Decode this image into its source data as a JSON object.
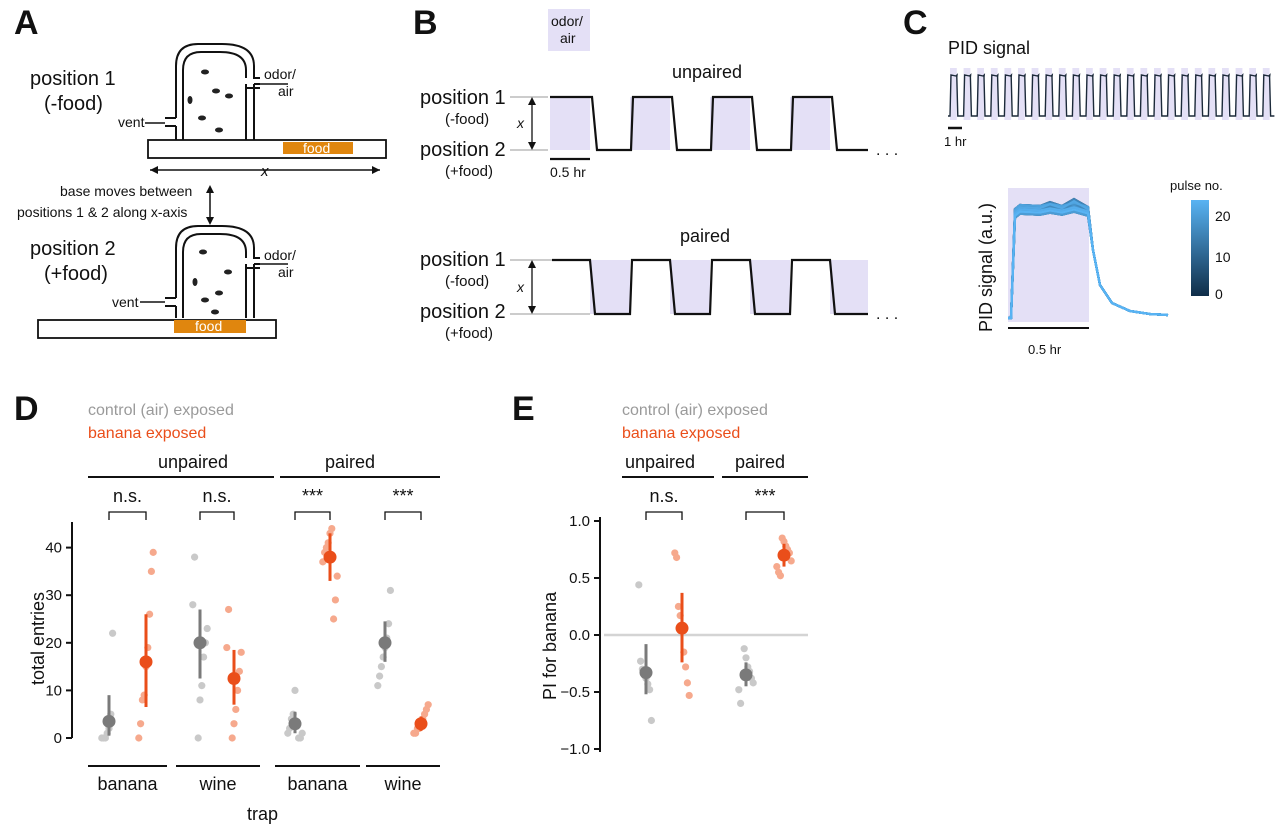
{
  "colors": {
    "control": "#7a7a7a",
    "control_light": "#c9c9c9",
    "banana": "#ea4e1a",
    "banana_light": "#f6a98d",
    "odor_shade": "#e4e0f6",
    "food": "#e0860e",
    "pid_trace": "#1c2a3a",
    "pulse_low": "#0f2d48",
    "pulse_high": "#58b3f3"
  },
  "panel_labels": [
    "A",
    "B",
    "C",
    "D",
    "E"
  ],
  "panelA": {
    "position1": [
      "position 1",
      "(-food)"
    ],
    "position2": [
      "position 2",
      "(+food)"
    ],
    "odor_air": [
      "odor/",
      "air"
    ],
    "vent": "vent",
    "food": "food",
    "x": "x",
    "base_note": [
      "base moves between",
      "positions 1 & 2 along x-axis"
    ]
  },
  "panelB": {
    "odor_air": [
      "odor/",
      "air"
    ],
    "unpaired": "unpaired",
    "paired": "paired",
    "position1": [
      "position 1",
      "(-food)"
    ],
    "position2": [
      "position 2",
      "(+food)"
    ],
    "x": "x",
    "scale": "0.5 hr",
    "ellipsis": ". . ."
  },
  "panelC": {
    "title": "PID signal",
    "scale_1hr": "1 hr",
    "ylabel": "PID signal (a.u.)",
    "scale_05hr": "0.5 hr",
    "legend_title": "pulse no.",
    "legend_ticks": [
      "20",
      "10",
      "0"
    ]
  },
  "legend_D": {
    "control": "control (air) exposed",
    "banana": "banana exposed"
  },
  "legend_E": {
    "control": "control (air) exposed",
    "banana": "banana exposed"
  },
  "chart_data": [
    {
      "type": "scatter",
      "panel": "D",
      "groups": [
        "unpaired",
        "paired"
      ],
      "categories": [
        "banana",
        "wine",
        "banana",
        "wine"
      ],
      "xlabel": "trap",
      "ylabel": "total entries",
      "ylim": [
        0,
        45
      ],
      "yticks": [
        "0",
        "10",
        "20",
        "30",
        "40"
      ],
      "significance": [
        "n.s.",
        "n.s.",
        "***",
        "***"
      ],
      "series": [
        {
          "name": "control (air) exposed",
          "means": [
            3.5,
            20,
            3,
            20
          ],
          "ci": [
            [
              0.5,
              9
            ],
            [
              12.5,
              27
            ],
            [
              1,
              5.5
            ],
            [
              16,
              24.5
            ]
          ],
          "points": [
            [
              0,
              0,
              0,
              1,
              2,
              5,
              22
            ],
            [
              0,
              8,
              11,
              17,
              20,
              23,
              28,
              38
            ],
            [
              0,
              0,
              1,
              1,
              2,
              4,
              5,
              10
            ],
            [
              11,
              13,
              15,
              17,
              19,
              21,
              24,
              31
            ]
          ]
        },
        {
          "name": "banana exposed",
          "means": [
            16,
            12.5,
            38,
            3
          ],
          "ci": [
            [
              6.5,
              26
            ],
            [
              7,
              18.5
            ],
            [
              33,
              43
            ],
            [
              1.5,
              4.5
            ]
          ],
          "points": [
            [
              0,
              3,
              8,
              9,
              15,
              19,
              26,
              35,
              39
            ],
            [
              0,
              3,
              6,
              10,
              14,
              18,
              19,
              27
            ],
            [
              25,
              29,
              34,
              37,
              39,
              40,
              41,
              43,
              44
            ],
            [
              1,
              1,
              2,
              2,
              3,
              4,
              5,
              6,
              7
            ]
          ]
        }
      ]
    },
    {
      "type": "scatter",
      "panel": "E",
      "groups": [
        "unpaired",
        "paired"
      ],
      "ylabel": "PI for banana",
      "ylim": [
        -1.0,
        1.0
      ],
      "yticks": [
        "1.0",
        "0.5",
        "0.0",
        "−0.5",
        "−1.0"
      ],
      "significance": [
        "n.s.",
        "***"
      ],
      "series": [
        {
          "name": "control (air) exposed",
          "means": [
            -0.33,
            -0.35
          ],
          "ci": [
            [
              -0.52,
              -0.08
            ],
            [
              -0.45,
              -0.24
            ]
          ],
          "points": [
            [
              0.44,
              -0.23,
              -0.3,
              -0.33,
              -0.38,
              -0.43,
              -0.48,
              -0.75
            ],
            [
              -0.12,
              -0.2,
              -0.28,
              -0.32,
              -0.38,
              -0.42,
              -0.48,
              -0.6
            ]
          ]
        },
        {
          "name": "banana exposed",
          "means": [
            0.06,
            0.7
          ],
          "ci": [
            [
              -0.24,
              0.37
            ],
            [
              0.6,
              0.8
            ]
          ],
          "points": [
            [
              0.72,
              0.68,
              0.25,
              0.17,
              0.05,
              -0.15,
              -0.28,
              -0.42,
              -0.53
            ],
            [
              0.85,
              0.82,
              0.78,
              0.75,
              0.72,
              0.65,
              0.6,
              0.55,
              0.52
            ]
          ]
        }
      ]
    }
  ]
}
